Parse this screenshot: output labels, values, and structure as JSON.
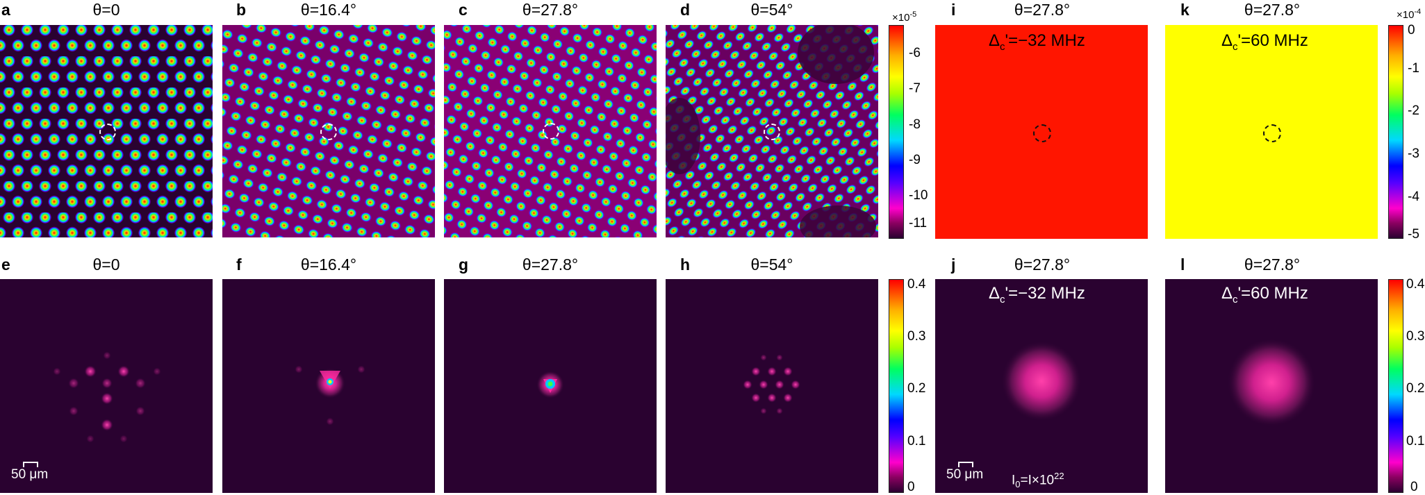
{
  "panels": {
    "a": {
      "letter": "a",
      "title": "θ=0"
    },
    "b": {
      "letter": "b",
      "title": "θ=16.4°"
    },
    "c": {
      "letter": "c",
      "title": "θ=27.8°"
    },
    "d": {
      "letter": "d",
      "title": "θ=54°"
    },
    "e": {
      "letter": "e",
      "title": "θ=0"
    },
    "f": {
      "letter": "f",
      "title": "θ=16.4°"
    },
    "g": {
      "letter": "g",
      "title": "θ=27.8°"
    },
    "h": {
      "letter": "h",
      "title": "θ=54°"
    },
    "i": {
      "letter": "i",
      "title": "θ=27.8°",
      "detuning": "Δc'=−32 MHz"
    },
    "j": {
      "letter": "j",
      "title": "θ=27.8°",
      "detuning": "Δc'=−32 MHz",
      "intensity": "I0=I×10^22"
    },
    "k": {
      "letter": "k",
      "title": "θ=27.8°",
      "detuning": "Δc'=60 MHz"
    },
    "l": {
      "letter": "l",
      "title": "θ=27.8°",
      "detuning": "Δc'=60 MHz"
    }
  },
  "detuning": {
    "sym": "Δ",
    "sub": "c",
    "neg": "'=−32 MHz",
    "pos": "'=60 MHz"
  },
  "intensity": {
    "lead": "I",
    "sub": "0",
    "mid": "=I×10",
    "sup": "22"
  },
  "scale_bar": "50 μm",
  "colorbars": {
    "top_left": {
      "exponent": "×10-5",
      "exp_base": "×10",
      "exp_power": "-5",
      "ticks": [
        "-6",
        "-7",
        "-8",
        "-9",
        "-10",
        "-11"
      ]
    },
    "top_right": {
      "exp_base": "×10",
      "exp_power": "-4",
      "ticks": [
        "0",
        "-1",
        "-2",
        "-3",
        "-4",
        "-5"
      ]
    },
    "bottom_left": {
      "ticks": [
        "0.4",
        "0.3",
        "0.2",
        "0.1",
        "0"
      ]
    },
    "bottom_right": {
      "ticks": [
        "0.4",
        "0.3",
        "0.2",
        "0.1",
        "0"
      ]
    }
  },
  "colors": {
    "uniform_i": "#ff1500",
    "uniform_k": "#ffff00",
    "dark_background": "#2a0230",
    "spot": "#ff3aa8"
  }
}
